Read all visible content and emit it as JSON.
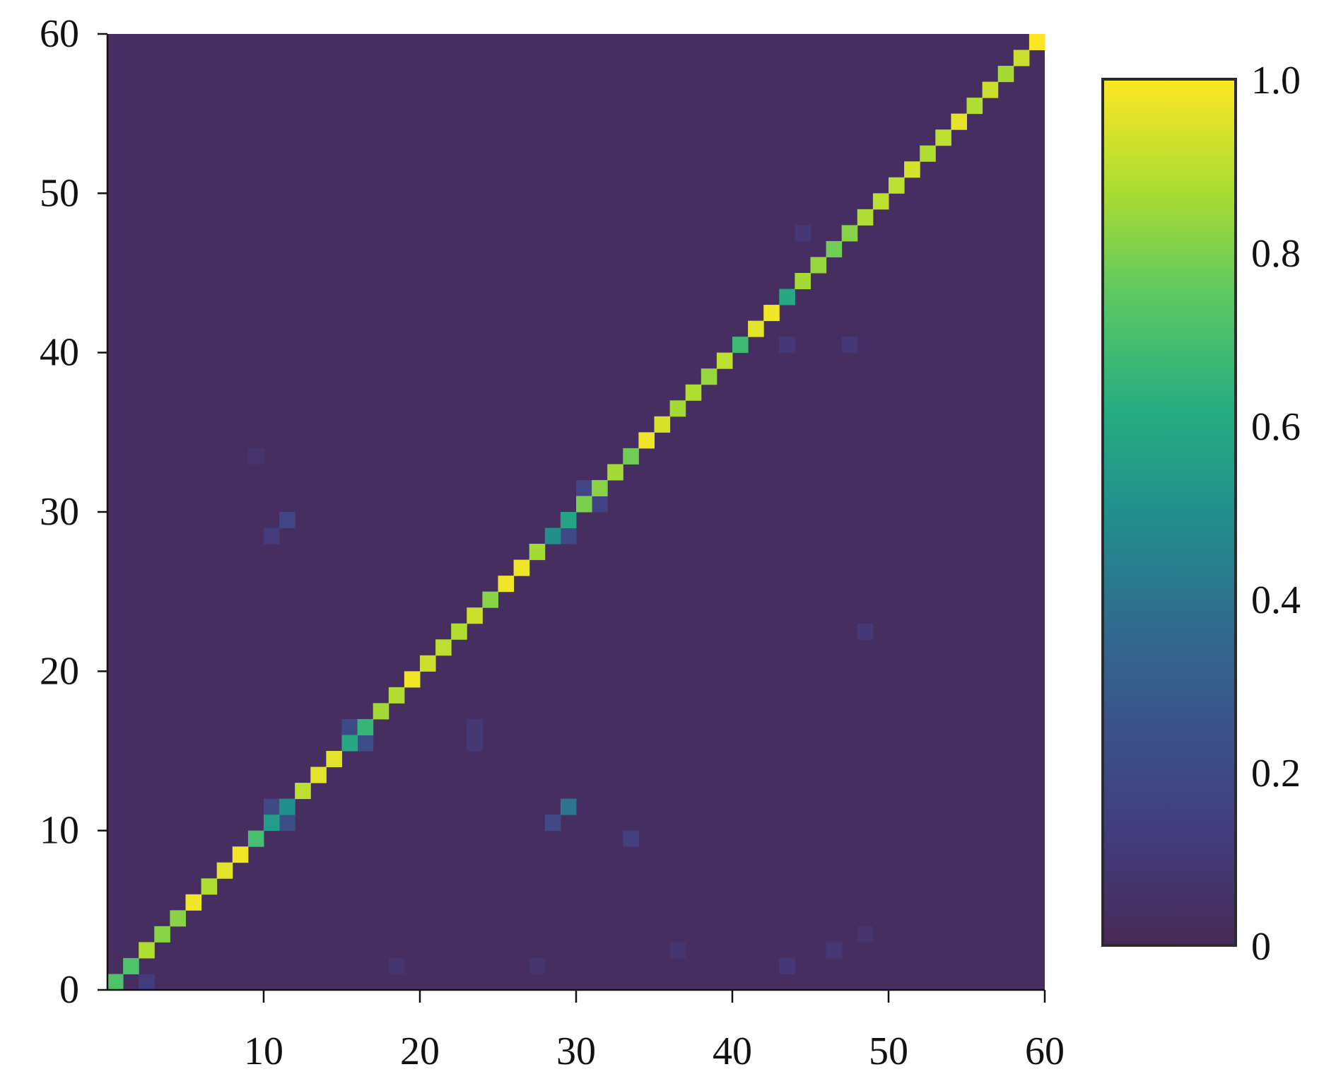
{
  "chart_data": {
    "type": "heatmap",
    "title": "",
    "xlabel": "",
    "ylabel": "",
    "xlim": [
      0,
      60
    ],
    "ylim": [
      0,
      60
    ],
    "x_ticks": [
      10,
      20,
      30,
      40,
      50,
      60
    ],
    "x_tick_labels": [
      "10",
      "20",
      "30",
      "40",
      "50",
      "60"
    ],
    "y_ticks": [
      0,
      10,
      20,
      30,
      40,
      50,
      60
    ],
    "y_tick_labels": [
      "0",
      "10",
      "20",
      "30",
      "40",
      "50",
      "60"
    ],
    "colorscale": "viridis",
    "background_value": 0.03,
    "diagonal": {
      "indices": [
        1,
        2,
        3,
        4,
        5,
        6,
        7,
        8,
        9,
        10,
        11,
        12,
        13,
        14,
        15,
        16,
        17,
        18,
        19,
        20,
        21,
        22,
        23,
        24,
        25,
        26,
        27,
        28,
        29,
        30,
        31,
        32,
        33,
        34,
        35,
        36,
        37,
        38,
        39,
        40,
        41,
        42,
        43,
        44,
        45,
        46,
        47,
        48,
        49,
        50,
        51,
        52,
        53,
        54,
        55,
        56,
        57,
        58,
        59,
        60
      ],
      "values": [
        0.72,
        0.72,
        0.88,
        0.82,
        0.82,
        0.98,
        0.88,
        0.96,
        0.98,
        0.7,
        0.55,
        0.5,
        0.9,
        0.96,
        0.96,
        0.6,
        0.66,
        0.86,
        0.88,
        0.98,
        0.92,
        0.9,
        0.88,
        0.92,
        0.82,
        0.98,
        0.98,
        0.86,
        0.5,
        0.58,
        0.8,
        0.82,
        0.86,
        0.78,
        0.98,
        0.94,
        0.86,
        0.88,
        0.84,
        0.9,
        0.68,
        0.96,
        0.98,
        0.6,
        0.86,
        0.84,
        0.78,
        0.82,
        0.88,
        0.9,
        0.9,
        0.94,
        0.88,
        0.9,
        0.96,
        0.88,
        0.92,
        0.86,
        0.92,
        1.0
      ]
    },
    "off_diagonal": [
      {
        "x": 3,
        "y": 1,
        "value": 0.12
      },
      {
        "x": 11,
        "y": 12,
        "value": 0.2
      },
      {
        "x": 12,
        "y": 11,
        "value": 0.22
      },
      {
        "x": 16,
        "y": 17,
        "value": 0.2
      },
      {
        "x": 17,
        "y": 16,
        "value": 0.22
      },
      {
        "x": 29,
        "y": 11,
        "value": 0.2
      },
      {
        "x": 30,
        "y": 12,
        "value": 0.4
      },
      {
        "x": 34,
        "y": 10,
        "value": 0.15
      },
      {
        "x": 12,
        "y": 30,
        "value": 0.18
      },
      {
        "x": 11,
        "y": 29,
        "value": 0.12
      },
      {
        "x": 30,
        "y": 29,
        "value": 0.2
      },
      {
        "x": 31,
        "y": 32,
        "value": 0.18
      },
      {
        "x": 32,
        "y": 31,
        "value": 0.16
      },
      {
        "x": 24,
        "y": 17,
        "value": 0.1
      },
      {
        "x": 24,
        "y": 16,
        "value": 0.1
      },
      {
        "x": 45,
        "y": 48,
        "value": 0.1
      },
      {
        "x": 44,
        "y": 41,
        "value": 0.1
      },
      {
        "x": 48,
        "y": 41,
        "value": 0.1
      },
      {
        "x": 44,
        "y": 2,
        "value": 0.1
      },
      {
        "x": 37,
        "y": 3,
        "value": 0.08
      },
      {
        "x": 49,
        "y": 23,
        "value": 0.1
      },
      {
        "x": 10,
        "y": 34,
        "value": 0.08
      },
      {
        "x": 19,
        "y": 2,
        "value": 0.08
      },
      {
        "x": 28,
        "y": 2,
        "value": 0.08
      },
      {
        "x": 47,
        "y": 3,
        "value": 0.09
      },
      {
        "x": 49,
        "y": 4,
        "value": 0.08
      }
    ],
    "colorbar": {
      "ticks": [
        0,
        0.2,
        0.4,
        0.6,
        0.8,
        1.0
      ],
      "tick_labels": [
        "0",
        "0.2",
        "0.4",
        "0.6",
        "0.8",
        "1.0"
      ],
      "range": [
        0,
        1.0
      ],
      "placement": "right"
    }
  }
}
